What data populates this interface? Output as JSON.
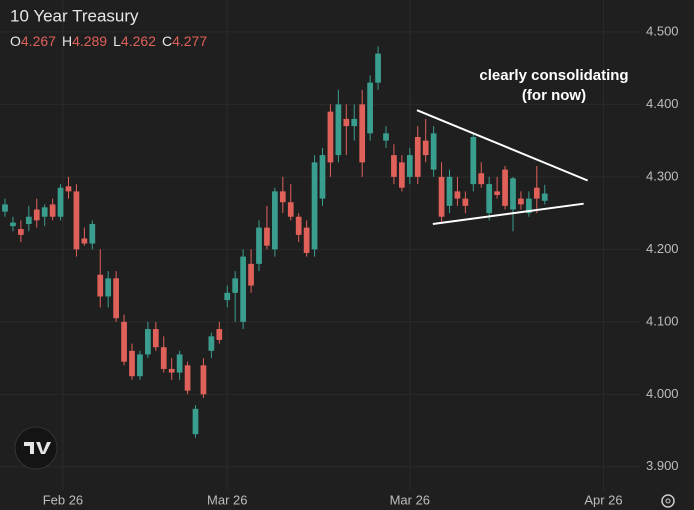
{
  "chart_data": {
    "type": "candlestick",
    "title": "10 Year Treasury",
    "ohlc_header": [
      {
        "label": "O",
        "value": 4.267
      },
      {
        "label": "H",
        "value": 4.289
      },
      {
        "label": "L",
        "value": 4.262
      },
      {
        "label": "C",
        "value": 4.277
      }
    ],
    "up_color": "#3a9e8f",
    "down_color": "#e0605a",
    "open": [
      4.252,
      4.232,
      4.228,
      4.235,
      4.255,
      4.245,
      4.262,
      4.245,
      4.287,
      4.28,
      4.215,
      4.208,
      4.165,
      4.135,
      4.16,
      4.1,
      4.06,
      4.025,
      4.055,
      4.09,
      4.065,
      4.035,
      4.03,
      4.04,
      3.945,
      4.04,
      4.06,
      4.09,
      4.13,
      4.14,
      4.1,
      4.18,
      4.18,
      4.23,
      4.2,
      4.28,
      4.265,
      4.245,
      4.23,
      4.2,
      4.27,
      4.39,
      4.33,
      4.38,
      4.37,
      4.4,
      4.36,
      4.43,
      4.35,
      4.33,
      4.32,
      4.3,
      4.355,
      4.35,
      4.31,
      4.3,
      4.26,
      4.28,
      4.27,
      4.29,
      4.305,
      4.25,
      4.28,
      4.31,
      4.255,
      4.27,
      4.25,
      4.285,
      4.267
    ],
    "high": [
      4.27,
      4.245,
      4.24,
      4.26,
      4.27,
      4.262,
      4.27,
      4.29,
      4.3,
      4.29,
      4.23,
      4.24,
      4.2,
      4.17,
      4.17,
      4.11,
      4.07,
      4.06,
      4.1,
      4.1,
      4.08,
      4.05,
      4.06,
      4.045,
      3.985,
      4.05,
      4.085,
      4.1,
      4.15,
      4.17,
      4.2,
      4.2,
      4.24,
      4.26,
      4.285,
      4.3,
      4.29,
      4.25,
      4.24,
      4.33,
      4.34,
      4.4,
      4.42,
      4.4,
      4.4,
      4.42,
      4.44,
      4.48,
      4.37,
      4.345,
      4.33,
      4.34,
      4.37,
      4.38,
      4.37,
      4.32,
      4.31,
      4.3,
      4.28,
      4.36,
      4.32,
      4.3,
      4.3,
      4.315,
      4.3,
      4.28,
      4.28,
      4.315,
      4.289
    ],
    "low": [
      4.245,
      4.225,
      4.21,
      4.225,
      4.23,
      4.232,
      4.24,
      4.24,
      4.27,
      4.19,
      4.205,
      4.2,
      4.12,
      4.12,
      4.1,
      4.04,
      4.02,
      4.02,
      4.05,
      4.06,
      4.03,
      4.02,
      4.02,
      4.0,
      3.94,
      3.995,
      4.05,
      4.07,
      4.12,
      4.1,
      4.09,
      4.14,
      4.17,
      4.2,
      4.19,
      4.25,
      4.24,
      4.21,
      4.19,
      4.19,
      4.26,
      4.3,
      4.32,
      4.33,
      4.35,
      4.3,
      4.35,
      4.42,
      4.34,
      4.29,
      4.28,
      4.29,
      4.29,
      4.32,
      4.3,
      4.235,
      4.25,
      4.26,
      4.25,
      4.28,
      4.285,
      4.24,
      4.27,
      4.255,
      4.225,
      4.255,
      4.245,
      4.25,
      4.262
    ],
    "close": [
      4.262,
      4.237,
      4.22,
      4.245,
      4.24,
      4.258,
      4.245,
      4.285,
      4.28,
      4.2,
      4.208,
      4.235,
      4.135,
      4.16,
      4.105,
      4.045,
      4.025,
      4.055,
      4.09,
      4.065,
      4.035,
      4.03,
      4.055,
      4.005,
      3.98,
      4.0,
      4.08,
      4.075,
      4.14,
      4.16,
      4.19,
      4.15,
      4.23,
      4.205,
      4.28,
      4.265,
      4.245,
      4.22,
      4.195,
      4.32,
      4.33,
      4.32,
      4.4,
      4.37,
      4.38,
      4.32,
      4.43,
      4.47,
      4.36,
      4.3,
      4.285,
      4.33,
      4.3,
      4.33,
      4.36,
      4.245,
      4.3,
      4.27,
      4.26,
      4.355,
      4.29,
      4.29,
      4.275,
      4.26,
      4.298,
      4.262,
      4.27,
      4.27,
      4.277
    ],
    "xlim": [
      -0.63,
      80
    ],
    "xticks": [
      {
        "value": 7.3,
        "label": "Feb 26"
      },
      {
        "value": 28,
        "label": "Mar 26"
      },
      {
        "value": 51,
        "label": "Mar 26"
      },
      {
        "value": 75.4,
        "label": "Apr 26"
      }
    ],
    "ylim": [
      3.868,
      4.544
    ],
    "yticks": [
      {
        "value": 3.9,
        "label": "3.900"
      },
      {
        "value": 4.0,
        "label": "4.000"
      },
      {
        "value": 4.1,
        "label": "4.100"
      },
      {
        "value": 4.2,
        "label": "4.200"
      },
      {
        "value": 4.3,
        "label": "4.300"
      },
      {
        "value": 4.4,
        "label": "4.400"
      },
      {
        "value": 4.5,
        "label": "4.500"
      }
    ],
    "grid": true,
    "annotation": [
      "clearly consolidating",
      "(for now)"
    ],
    "trendlines": [
      {
        "x": [
          51.9,
          73.4
        ],
        "y": [
          4.392,
          4.295
        ]
      },
      {
        "x": [
          53.9,
          72.9
        ],
        "y": [
          4.235,
          4.263
        ]
      }
    ]
  }
}
